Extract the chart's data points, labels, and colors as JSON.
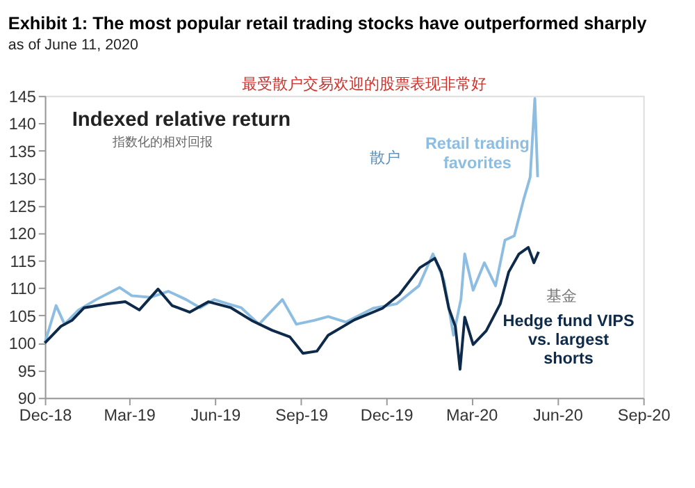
{
  "chart_data": {
    "type": "line",
    "title": "Exhibit 1: The most popular retail trading stocks have outperformed sharply",
    "subtitle": "as of June 11, 2020",
    "annotations": [
      "最受散户交易欢迎的股票表现非常好",
      "Indexed relative return",
      "指数化的相对回报",
      "散户",
      "基金"
    ],
    "xlim": [
      "2018-12-01",
      "2020-09-01"
    ],
    "xticks": [
      {
        "value": "2018-12-01",
        "label": "Dec-18"
      },
      {
        "value": "2019-03-01",
        "label": "Mar-19"
      },
      {
        "value": "2019-06-01",
        "label": "Jun-19"
      },
      {
        "value": "2019-09-01",
        "label": "Sep-19"
      },
      {
        "value": "2019-12-01",
        "label": "Dec-19"
      },
      {
        "value": "2020-03-01",
        "label": "Mar-20"
      },
      {
        "value": "2020-06-01",
        "label": "Jun-20"
      },
      {
        "value": "2020-09-01",
        "label": "Sep-20"
      }
    ],
    "ylim": [
      90,
      145
    ],
    "yticks": [
      90,
      95,
      100,
      105,
      110,
      115,
      120,
      125,
      130,
      135,
      140,
      145
    ],
    "grid": false,
    "legend": false,
    "marker": "none",
    "line_style": "solid",
    "series": [
      {
        "name": "Retail trading favorites",
        "color": "#8dbde0",
        "x": [
          "2018-12-01",
          "2018-12-13",
          "2018-12-22",
          "2019-01-06",
          "2019-01-25",
          "2019-02-19",
          "2019-03-04",
          "2019-03-24",
          "2019-04-12",
          "2019-05-01",
          "2019-05-16",
          "2019-05-31",
          "2019-06-15",
          "2019-06-29",
          "2019-07-18",
          "2019-08-12",
          "2019-08-27",
          "2019-09-15",
          "2019-09-30",
          "2019-10-19",
          "2019-11-17",
          "2019-12-12",
          "2020-01-05",
          "2020-01-20",
          "2020-02-01",
          "2020-02-11",
          "2020-02-19",
          "2020-02-23",
          "2020-03-03",
          "2020-03-15",
          "2020-03-27",
          "2020-04-06",
          "2020-04-16",
          "2020-04-26",
          "2020-05-03",
          "2020-05-08",
          "2020-05-11"
        ],
        "values": [
          100,
          106.8,
          103.4,
          106,
          107.9,
          110.1,
          108.6,
          108.3,
          109.4,
          107.9,
          106.4,
          107.9,
          107.1,
          106.4,
          103.4,
          107.9,
          103.4,
          104.1,
          104.8,
          103.8,
          106.3,
          107.1,
          110.4,
          116.2,
          111.3,
          101.4,
          108,
          116.2,
          109.6,
          114.6,
          110.4,
          118.7,
          119.5,
          126.1,
          130.2,
          144.5,
          130.2
        ]
      },
      {
        "name": "Hedge fund VIPS vs. largest shorts",
        "color": "#0d2a4a",
        "x": [
          "2018-12-01",
          "2018-12-18",
          "2018-12-30",
          "2019-01-12",
          "2019-02-05",
          "2019-02-25",
          "2019-03-12",
          "2019-04-01",
          "2019-04-16",
          "2019-05-05",
          "2019-05-25",
          "2019-06-18",
          "2019-07-10",
          "2019-08-01",
          "2019-08-20",
          "2019-09-03",
          "2019-09-18",
          "2019-09-30",
          "2019-10-28",
          "2019-11-27",
          "2019-12-15",
          "2020-01-06",
          "2020-01-22",
          "2020-01-29",
          "2020-02-06",
          "2020-02-13",
          "2020-02-18",
          "2020-02-23",
          "2020-03-03",
          "2020-03-17",
          "2020-04-01",
          "2020-04-10",
          "2020-04-21",
          "2020-05-01",
          "2020-05-07",
          "2020-05-12"
        ],
        "values": [
          100,
          103,
          104.1,
          106.4,
          107.1,
          107.5,
          106,
          109.8,
          106.8,
          105.6,
          107.5,
          106.4,
          104.1,
          102.3,
          101.1,
          98.1,
          98.5,
          101.4,
          104.2,
          106.3,
          108.8,
          113.7,
          115.4,
          112.9,
          106.3,
          103,
          95.2,
          104.7,
          99.7,
          102.2,
          107.1,
          112.9,
          116.2,
          117.4,
          114.6,
          116.6
        ]
      }
    ]
  }
}
